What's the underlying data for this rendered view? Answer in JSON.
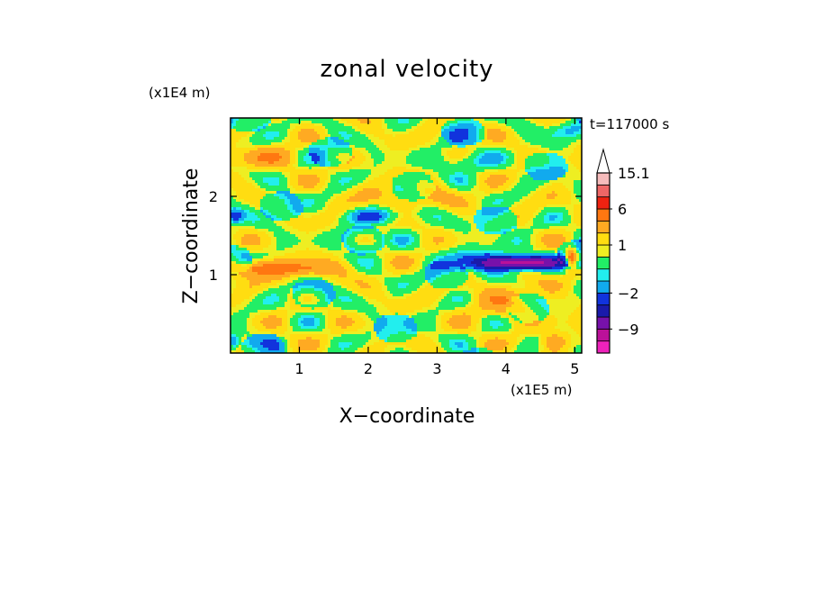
{
  "chart_data": {
    "type": "heatmap",
    "title": "zonal velocity",
    "xlabel": "X−coordinate",
    "ylabel": "Z−coordinate",
    "x_unit_label": "(x1E5 m)",
    "y_unit_label": "(x1E4 m)",
    "time_label": "t=117000 s",
    "xlim": [
      0,
      5.1
    ],
    "ylim": [
      0,
      3.0
    ],
    "x_ticks": [
      {
        "value": 1,
        "label": "1"
      },
      {
        "value": 2,
        "label": "2"
      },
      {
        "value": 3,
        "label": "3"
      },
      {
        "value": 4,
        "label": "4"
      },
      {
        "value": 5,
        "label": "5"
      }
    ],
    "y_ticks": [
      {
        "value": 1,
        "label": "1"
      },
      {
        "value": 2,
        "label": "2"
      }
    ],
    "colorbar": {
      "levels": [
        -15,
        -12,
        -9,
        -6,
        -4,
        -2,
        -1,
        -0.5,
        0.5,
        1,
        2,
        4,
        6,
        9,
        12,
        15.1
      ],
      "colors": [
        "#ee22bb",
        "#bb1199",
        "#7711aa",
        "#1a1aaa",
        "#1133dd",
        "#11aaee",
        "#22eeee",
        "#22ee66",
        "#eeee22",
        "#ffdd11",
        "#ffaa22",
        "#ff7711",
        "#ee2211",
        "#ee6666",
        "#f5bbbb"
      ],
      "labeled_levels": [
        {
          "value": 15.1,
          "label": "15.1"
        },
        {
          "value": 6,
          "label": "6"
        },
        {
          "value": 1,
          "label": "1"
        },
        {
          "value": -2,
          "label": "−2"
        },
        {
          "value": -9,
          "label": "−9"
        }
      ],
      "extend": "max"
    },
    "features": [
      {
        "x": 0.4,
        "z": 1.1,
        "value": 6,
        "kind": "core"
      },
      {
        "x": 4.3,
        "z": 1.15,
        "value": -8,
        "kind": "core"
      },
      {
        "x": 4.9,
        "z": 1.2,
        "value": 6,
        "kind": "core"
      }
    ]
  }
}
